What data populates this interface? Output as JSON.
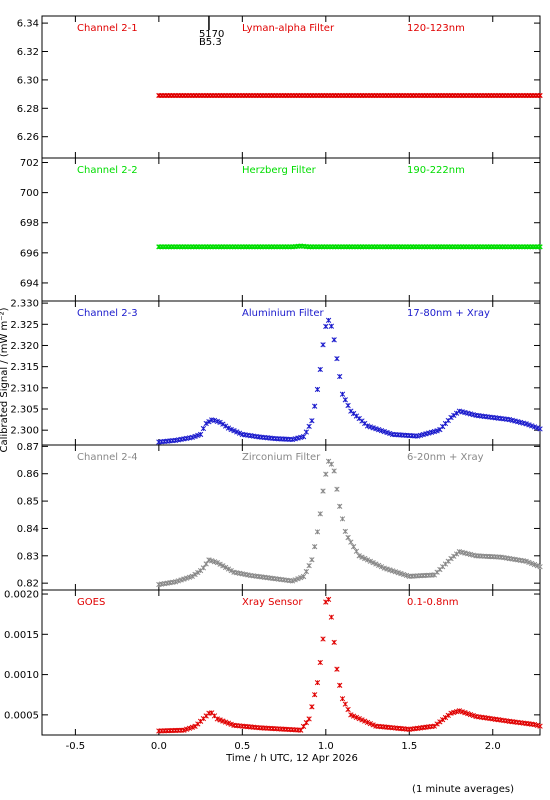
{
  "figure": {
    "ylabel": "Calibrated Signal / (mW m⁻²)",
    "xlabel": "Time / h UTC, 12 Apr 2026",
    "footnote": "(1 minute averages)",
    "marker_top": "5170",
    "marker_bottom": "B5.3",
    "marker_x": 0.3
  },
  "chart_data": [
    {
      "type": "scatter",
      "panel": "channel-2-1",
      "channel_label": "Channel 2-1",
      "filter_label": "Lyman-alpha Filter",
      "band_label": "120-123nm",
      "color": "#e00000",
      "ylim": [
        6.245,
        6.345
      ],
      "yticks": [
        6.26,
        6.28,
        6.3,
        6.32,
        6.34
      ],
      "ytick_labels": [
        "6.26",
        "6.28",
        "6.30",
        "6.32",
        "6.34"
      ],
      "points": [
        [
          0.0,
          6.289
        ],
        [
          0.5,
          6.289
        ],
        [
          1.0,
          6.289
        ],
        [
          1.5,
          6.289
        ],
        [
          2.0,
          6.289
        ],
        [
          2.283,
          6.289
        ]
      ]
    },
    {
      "type": "scatter",
      "panel": "channel-2-2",
      "channel_label": "Channel 2-2",
      "filter_label": "Herzberg Filter",
      "band_label": "190-222nm",
      "color": "#00dd00",
      "ylim": [
        692.8,
        702.3
      ],
      "yticks": [
        694,
        696,
        698,
        700,
        702
      ],
      "ytick_labels": [
        "694",
        "696",
        "698",
        "700",
        "702"
      ],
      "points": [
        [
          0.0,
          696.4
        ],
        [
          0.8,
          696.4
        ],
        [
          0.85,
          696.45
        ],
        [
          0.9,
          696.4
        ],
        [
          1.5,
          696.4
        ],
        [
          2.0,
          696.4
        ],
        [
          2.283,
          696.4
        ]
      ]
    },
    {
      "type": "scatter",
      "panel": "channel-2-3",
      "channel_label": "Channel 2-3",
      "filter_label": "Aluminium Filter",
      "band_label": "17-80nm + Xray",
      "color": "#1a1acc",
      "ylim": [
        2.2965,
        2.3305
      ],
      "yticks": [
        2.3,
        2.305,
        2.31,
        2.315,
        2.32,
        2.325,
        2.33
      ],
      "ytick_labels": [
        "2.300",
        "2.305",
        "2.310",
        "2.315",
        "2.320",
        "2.325",
        "2.330"
      ],
      "points": [
        [
          0.0,
          2.2972
        ],
        [
          0.1,
          2.2976
        ],
        [
          0.2,
          2.2983
        ],
        [
          0.25,
          2.299
        ],
        [
          0.28,
          2.3015
        ],
        [
          0.32,
          2.3025
        ],
        [
          0.37,
          2.3018
        ],
        [
          0.42,
          2.3004
        ],
        [
          0.5,
          2.299
        ],
        [
          0.6,
          2.2984
        ],
        [
          0.7,
          2.298
        ],
        [
          0.8,
          2.2978
        ],
        [
          0.87,
          2.2985
        ],
        [
          0.92,
          2.3025
        ],
        [
          0.96,
          2.312
        ],
        [
          0.99,
          2.3225
        ],
        [
          1.01,
          2.3265
        ],
        [
          1.04,
          2.324
        ],
        [
          1.07,
          2.316
        ],
        [
          1.1,
          2.3085
        ],
        [
          1.15,
          2.3045
        ],
        [
          1.25,
          2.301
        ],
        [
          1.4,
          2.299
        ],
        [
          1.55,
          2.2986
        ],
        [
          1.68,
          2.3
        ],
        [
          1.75,
          2.303
        ],
        [
          1.8,
          2.3045
        ],
        [
          1.9,
          2.3035
        ],
        [
          2.0,
          2.303
        ],
        [
          2.1,
          2.3025
        ],
        [
          2.2,
          2.3015
        ],
        [
          2.283,
          2.3003
        ]
      ]
    },
    {
      "type": "scatter",
      "panel": "channel-2-4",
      "channel_label": "Channel 2-4",
      "filter_label": "Zirconium Filter",
      "band_label": "6-20nm + Xray",
      "color": "#888888",
      "ylim": [
        0.8175,
        0.8705
      ],
      "yticks": [
        0.82,
        0.83,
        0.84,
        0.85,
        0.86,
        0.87
      ],
      "ytick_labels": [
        "0.82",
        "0.83",
        "0.84",
        "0.85",
        "0.86",
        "0.87"
      ],
      "points": [
        [
          0.0,
          0.8195
        ],
        [
          0.1,
          0.8205
        ],
        [
          0.2,
          0.8225
        ],
        [
          0.26,
          0.825
        ],
        [
          0.3,
          0.8285
        ],
        [
          0.35,
          0.8275
        ],
        [
          0.45,
          0.824
        ],
        [
          0.55,
          0.8228
        ],
        [
          0.65,
          0.822
        ],
        [
          0.8,
          0.8208
        ],
        [
          0.87,
          0.8225
        ],
        [
          0.92,
          0.829
        ],
        [
          0.96,
          0.842
        ],
        [
          0.99,
          0.857
        ],
        [
          1.02,
          0.8655
        ],
        [
          1.05,
          0.861
        ],
        [
          1.08,
          0.849
        ],
        [
          1.12,
          0.838
        ],
        [
          1.2,
          0.83
        ],
        [
          1.35,
          0.8255
        ],
        [
          1.5,
          0.8225
        ],
        [
          1.65,
          0.823
        ],
        [
          1.75,
          0.829
        ],
        [
          1.8,
          0.8315
        ],
        [
          1.9,
          0.83
        ],
        [
          2.05,
          0.8295
        ],
        [
          2.2,
          0.828
        ],
        [
          2.283,
          0.826
        ]
      ]
    },
    {
      "type": "scatter",
      "panel": "goes",
      "channel_label": "GOES",
      "filter_label": "Xray Sensor",
      "band_label": "0.1-0.8nm",
      "color": "#e00000",
      "ylim": [
        0.00025,
        0.00205
      ],
      "yticks": [
        0.0005,
        0.001,
        0.0015,
        0.002
      ],
      "ytick_labels": [
        "0.0005",
        "0.0010",
        "0.0015",
        "0.0020"
      ],
      "points": [
        [
          0.0,
          0.0003
        ],
        [
          0.15,
          0.00031
        ],
        [
          0.22,
          0.00036
        ],
        [
          0.28,
          0.00048
        ],
        [
          0.31,
          0.00054
        ],
        [
          0.35,
          0.00045
        ],
        [
          0.45,
          0.00037
        ],
        [
          0.6,
          0.00034
        ],
        [
          0.85,
          0.00031
        ],
        [
          0.9,
          0.00045
        ],
        [
          0.95,
          0.0009
        ],
        [
          0.98,
          0.00135
        ],
        [
          1.0,
          0.0019
        ],
        [
          1.02,
          0.00194
        ],
        [
          1.04,
          0.0016
        ],
        [
          1.07,
          0.001
        ],
        [
          1.1,
          0.0007
        ],
        [
          1.15,
          0.0005
        ],
        [
          1.3,
          0.00036
        ],
        [
          1.5,
          0.00032
        ],
        [
          1.65,
          0.00036
        ],
        [
          1.75,
          0.00052
        ],
        [
          1.8,
          0.00055
        ],
        [
          1.9,
          0.00048
        ],
        [
          2.1,
          0.00042
        ],
        [
          2.25,
          0.00038
        ],
        [
          2.283,
          0.00036
        ]
      ]
    }
  ],
  "xaxis": {
    "xlim": [
      -0.7,
      2.283
    ],
    "ticks": [
      -0.5,
      0.0,
      0.5,
      1.0,
      1.5,
      2.0
    ],
    "tick_labels": [
      "-0.5",
      "0.0",
      "0.5",
      "1.0",
      "1.5",
      "2.0"
    ]
  }
}
